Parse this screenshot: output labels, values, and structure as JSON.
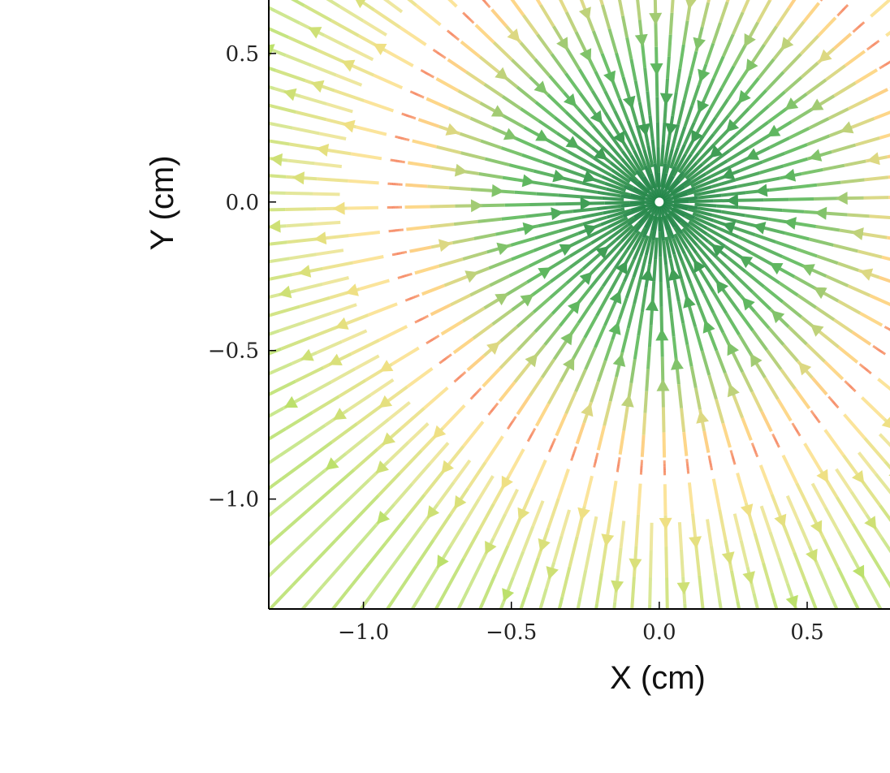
{
  "chart_data": {
    "type": "streamplot",
    "xlabel": "X (cm)",
    "ylabel": "Y (cm)",
    "xlim": [
      -1.32,
      0.78
    ],
    "ylim": [
      -1.37,
      0.68
    ],
    "xticks": [
      {
        "value": -1.0,
        "label": "−1.0"
      },
      {
        "value": -0.5,
        "label": "−0.5"
      },
      {
        "value": 0.0,
        "label": "0.0"
      },
      {
        "value": 0.5,
        "label": "0.5"
      }
    ],
    "yticks": [
      {
        "value": 0.5,
        "label": "0.5"
      },
      {
        "value": 0.0,
        "label": "0.0"
      },
      {
        "value": -0.5,
        "label": "−0.5"
      },
      {
        "value": -1.0,
        "label": "−1.0"
      }
    ],
    "field": {
      "center": [
        0.0,
        0.0
      ],
      "separatrix_radius": 0.9,
      "inner_direction": "toward-center",
      "outer_direction": "away-from-center",
      "num_streamlines": 72
    },
    "colormap": {
      "inner_near_center": "#1a7f46",
      "inner_mid": "#66bd63",
      "near_separatrix": "#f46d43",
      "outer_mid": "#fee08b",
      "outer_far": "#b8e06a"
    },
    "grid": false
  }
}
